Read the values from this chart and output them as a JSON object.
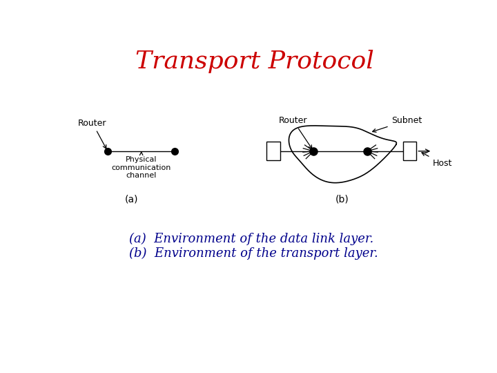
{
  "title": "Transport Protocol",
  "title_color": "#cc0000",
  "title_fontsize": 26,
  "background_color": "#ffffff",
  "caption_a": "(a)  Environment of the data link layer.",
  "caption_b": "(b)  Environment of the transport layer.",
  "caption_color": "#00008B",
  "caption_fontsize": 13
}
